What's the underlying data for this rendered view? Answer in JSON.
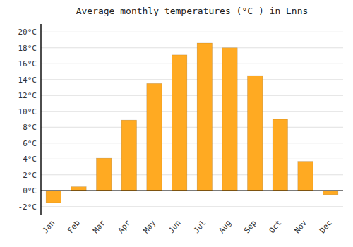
{
  "chart_data": {
    "type": "bar",
    "title": "Average monthly temperatures (°C ) in Enns",
    "categories": [
      "Jan",
      "Feb",
      "Mar",
      "Apr",
      "May",
      "Jun",
      "Jul",
      "Aug",
      "Sep",
      "Oct",
      "Nov",
      "Dec"
    ],
    "values": [
      -1.5,
      0.5,
      4.1,
      8.9,
      13.5,
      17.1,
      18.6,
      18.0,
      14.5,
      9.0,
      3.7,
      -0.5
    ],
    "color": "#FFAA22",
    "ylim": [
      -3,
      21
    ],
    "yticks": [
      {
        "value": -2,
        "label": "-2°C"
      },
      {
        "value": 0,
        "label": "0°C"
      },
      {
        "value": 2,
        "label": "2°C"
      },
      {
        "value": 4,
        "label": "4°C"
      },
      {
        "value": 6,
        "label": "6°C"
      },
      {
        "value": 8,
        "label": "8°C"
      },
      {
        "value": 10,
        "label": "10°C"
      },
      {
        "value": 12,
        "label": "12°C"
      },
      {
        "value": 14,
        "label": "14°C"
      },
      {
        "value": 16,
        "label": "16°C"
      },
      {
        "value": 18,
        "label": "18°C"
      },
      {
        "value": 20,
        "label": "20°C"
      }
    ],
    "grid": true
  }
}
